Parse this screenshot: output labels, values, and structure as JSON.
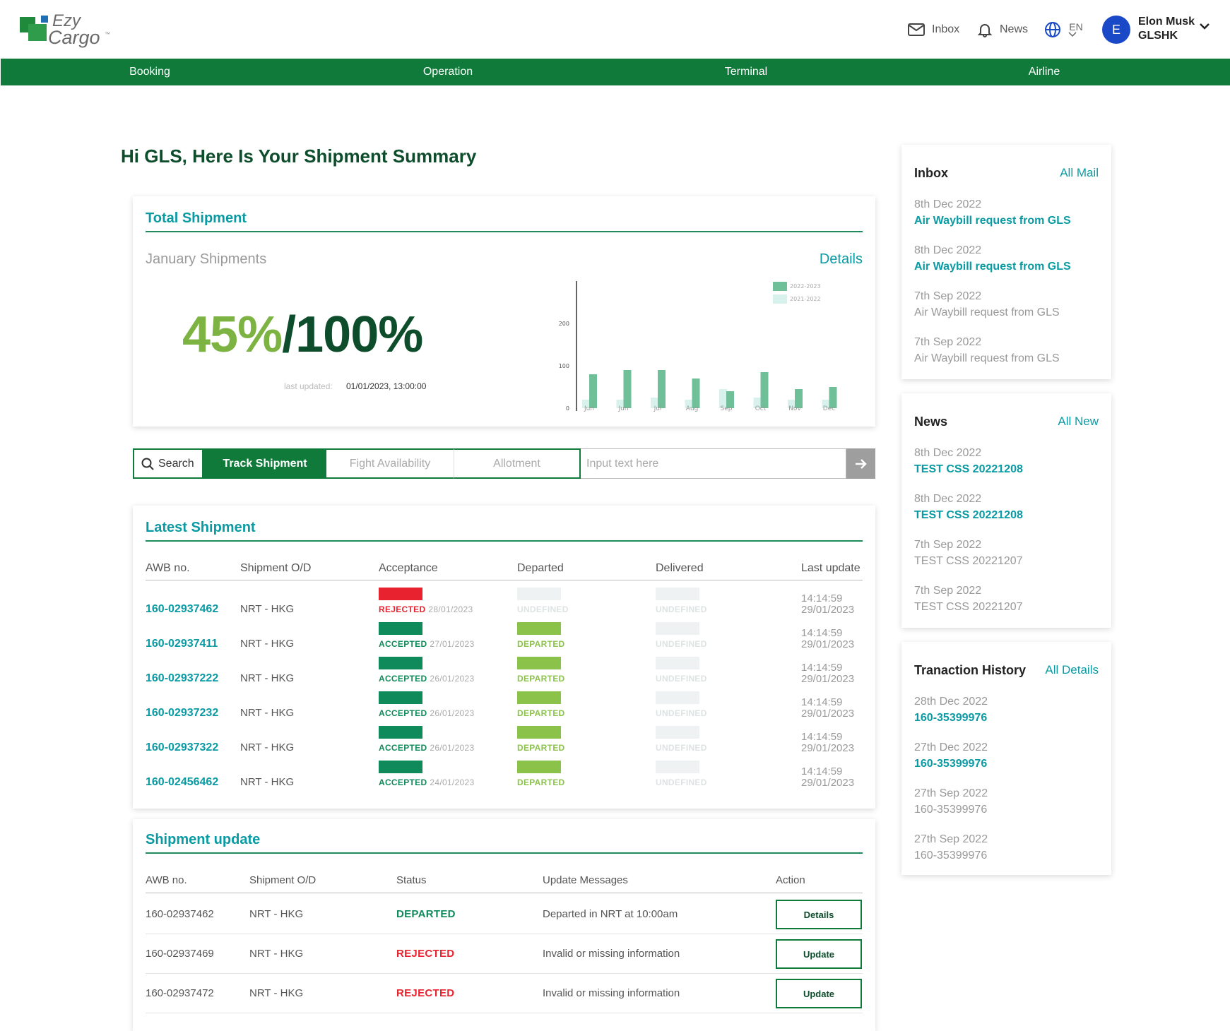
{
  "header": {
    "logo_line1": "Ezy",
    "logo_line2": "Cargo",
    "logo_tm": "™",
    "inbox_label": "Inbox",
    "news_label": "News",
    "lang_label": "EN",
    "user_initial": "E",
    "user_name": "Elon Musk",
    "user_org": "GLSHK"
  },
  "nav": [
    "Booking",
    "Operation",
    "Terminal",
    "Airline"
  ],
  "greeting": "Hi GLS, Here Is Your Shipment Summary",
  "total_shipment": {
    "title": "Total Shipment",
    "period_label": "January Shipments",
    "details_label": "Details",
    "pct_done": "45%",
    "pct_total": "/100%",
    "last_updated_label": "last updated:",
    "last_updated_value": "01/01/2023, 13:00:00"
  },
  "chart_data": {
    "type": "bar",
    "categories": [
      "Jun",
      "Jun",
      "Jul",
      "Aug",
      "Sep",
      "Oct",
      "Nov",
      "Dec"
    ],
    "series": [
      {
        "name": "2022-2023",
        "values": [
          80,
          90,
          90,
          70,
          40,
          85,
          45,
          50
        ],
        "color": "#6fbf98"
      },
      {
        "name": "2021-2022",
        "values": [
          20,
          20,
          25,
          20,
          45,
          25,
          20,
          20
        ],
        "color": "#d9f1ec"
      }
    ],
    "y_ticks": [
      0,
      100,
      200
    ],
    "ylim": [
      0,
      300
    ],
    "legend": "top-right"
  },
  "search": {
    "search_label": "Search",
    "tabs": [
      "Track Shipment",
      "Fight Availability",
      "Allotment"
    ],
    "placeholder": "Input text here"
  },
  "latest": {
    "title": "Latest Shipment",
    "headers": [
      "AWB no.",
      "Shipment O/D",
      "Acceptance",
      "Departed",
      "Delivered",
      "Last update"
    ],
    "rows": [
      {
        "awb": "160-02937462",
        "od": "NRT - HKG",
        "acc_status": "REJECTED",
        "acc_date": "28/01/2023",
        "dep_status": "UNDEFINED",
        "del_status": "UNDEFINED",
        "time": "14:14:59",
        "date": "29/01/2023"
      },
      {
        "awb": "160-02937411",
        "od": "NRT - HKG",
        "acc_status": "ACCEPTED",
        "acc_date": "27/01/2023",
        "dep_status": "DEPARTED",
        "del_status": "UNDEFINED",
        "time": "14:14:59",
        "date": "29/01/2023"
      },
      {
        "awb": "160-02937222",
        "od": "NRT - HKG",
        "acc_status": "ACCEPTED",
        "acc_date": "26/01/2023",
        "dep_status": "DEPARTED",
        "del_status": "UNDEFINED",
        "time": "14:14:59",
        "date": "29/01/2023"
      },
      {
        "awb": "160-02937232",
        "od": "NRT - HKG",
        "acc_status": "ACCEPTED",
        "acc_date": "26/01/2023",
        "dep_status": "DEPARTED",
        "del_status": "UNDEFINED",
        "time": "14:14:59",
        "date": "29/01/2023"
      },
      {
        "awb": "160-02937322",
        "od": "NRT - HKG",
        "acc_status": "ACCEPTED",
        "acc_date": "26/01/2023",
        "dep_status": "DEPARTED",
        "del_status": "UNDEFINED",
        "time": "14:14:59",
        "date": "29/01/2023"
      },
      {
        "awb": "160-02456462",
        "od": "NRT - HKG",
        "acc_status": "ACCEPTED",
        "acc_date": "24/01/2023",
        "dep_status": "DEPARTED",
        "del_status": "UNDEFINED",
        "time": "14:14:59",
        "date": "29/01/2023"
      }
    ]
  },
  "update": {
    "title": "Shipment update",
    "headers": [
      "AWB no.",
      "Shipment O/D",
      "Status",
      "Update Messages",
      "Action"
    ],
    "rows": [
      {
        "awb": "160-02937462",
        "od": "NRT - HKG",
        "status": "DEPARTED",
        "message": "Departed in NRT at 10:00am",
        "action": "Details"
      },
      {
        "awb": "160-02937469",
        "od": "NRT - HKG",
        "status": "REJECTED",
        "message": "Invalid or missing information",
        "action": "Update"
      },
      {
        "awb": "160-02937472",
        "od": "NRT - HKG",
        "status": "REJECTED",
        "message": "Invalid or missing information",
        "action": "Update"
      }
    ]
  },
  "inbox_panel": {
    "title": "Inbox",
    "link": "All Mail",
    "items": [
      {
        "date": "8th Dec 2022",
        "text": "Air Waybill request from GLS",
        "unread": true
      },
      {
        "date": "8th Dec 2022",
        "text": "Air Waybill request from GLS",
        "unread": true
      },
      {
        "date": "7th Sep 2022",
        "text": "Air Waybill request from GLS",
        "unread": false
      },
      {
        "date": "7th Sep 2022",
        "text": "Air Waybill request from GLS",
        "unread": false
      }
    ]
  },
  "news_panel": {
    "title": "News",
    "link": "All New",
    "items": [
      {
        "date": "8th Dec 2022",
        "text": "TEST CSS 20221208",
        "unread": true
      },
      {
        "date": "8th Dec 2022",
        "text": "TEST CSS 20221208",
        "unread": true
      },
      {
        "date": "7th Sep 2022",
        "text": "TEST CSS 20221207",
        "unread": false
      },
      {
        "date": "7th Sep 2022",
        "text": "TEST CSS 20221207",
        "unread": false
      }
    ]
  },
  "history_panel": {
    "title": "Tranaction History",
    "link": "All Details",
    "items": [
      {
        "date": "28th Dec 2022",
        "text": "160-35399976",
        "unread": true
      },
      {
        "date": "27th Dec 2022",
        "text": "160-35399976",
        "unread": true
      },
      {
        "date": "27th Sep 2022",
        "text": "160-35399976",
        "unread": false
      },
      {
        "date": "27th Sep 2022",
        "text": "160-35399976",
        "unread": false
      }
    ]
  },
  "colors": {
    "brand_green": "#0f7a3a",
    "accent_teal": "#0a9aa3",
    "rejected": "#e8232f",
    "accepted": "#0f8a5a",
    "departed": "#8bc34a",
    "undefined": "#eef2f2"
  }
}
